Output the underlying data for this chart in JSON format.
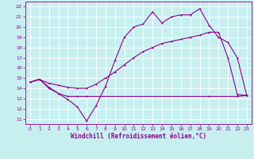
{
  "xlabel": "Windchill (Refroidissement éolien,°C)",
  "background_color": "#c8eff0",
  "grid_color": "#ffffff",
  "line_color": "#8b008b",
  "xlim": [
    -0.5,
    23.5
  ],
  "ylim": [
    10.5,
    22.5
  ],
  "xticks": [
    0,
    1,
    2,
    3,
    4,
    5,
    6,
    7,
    8,
    9,
    10,
    11,
    12,
    13,
    14,
    15,
    16,
    17,
    18,
    19,
    20,
    21,
    22,
    23
  ],
  "yticks": [
    11,
    12,
    13,
    14,
    15,
    16,
    17,
    18,
    19,
    20,
    21,
    22
  ],
  "series1_x": [
    0,
    1,
    2,
    3,
    4,
    5,
    6,
    7,
    8,
    9,
    10,
    11,
    12,
    13,
    14,
    15,
    16,
    17,
    18,
    19,
    20,
    21,
    22,
    23
  ],
  "series1_y": [
    14.6,
    14.9,
    14.0,
    13.5,
    12.9,
    12.2,
    10.8,
    12.3,
    14.2,
    16.7,
    19.0,
    20.0,
    20.3,
    21.5,
    20.4,
    21.0,
    21.2,
    21.2,
    21.8,
    20.2,
    19.0,
    18.5,
    17.0,
    13.3
  ],
  "series2_x": [
    0,
    1,
    2,
    3,
    4,
    5,
    6,
    19,
    22,
    23
  ],
  "series2_y": [
    14.6,
    14.9,
    14.1,
    13.5,
    13.2,
    13.2,
    13.2,
    13.2,
    13.2,
    13.3
  ],
  "series3_x": [
    0,
    1,
    2,
    3,
    4,
    5,
    6,
    7,
    8,
    9,
    10,
    11,
    12,
    13,
    14,
    15,
    16,
    17,
    18,
    19,
    20,
    21,
    22,
    23
  ],
  "series3_y": [
    14.6,
    14.85,
    14.5,
    14.3,
    14.1,
    14.0,
    14.0,
    14.4,
    15.0,
    15.6,
    16.3,
    17.0,
    17.6,
    18.0,
    18.4,
    18.6,
    18.8,
    19.0,
    19.2,
    19.5,
    19.5,
    17.0,
    13.4,
    13.3
  ],
  "figw": 3.2,
  "figh": 2.0,
  "dpi": 100,
  "lw": 0.8,
  "ms": 2.0,
  "label_fontsize": 5.5,
  "tick_fontsize": 4.5
}
